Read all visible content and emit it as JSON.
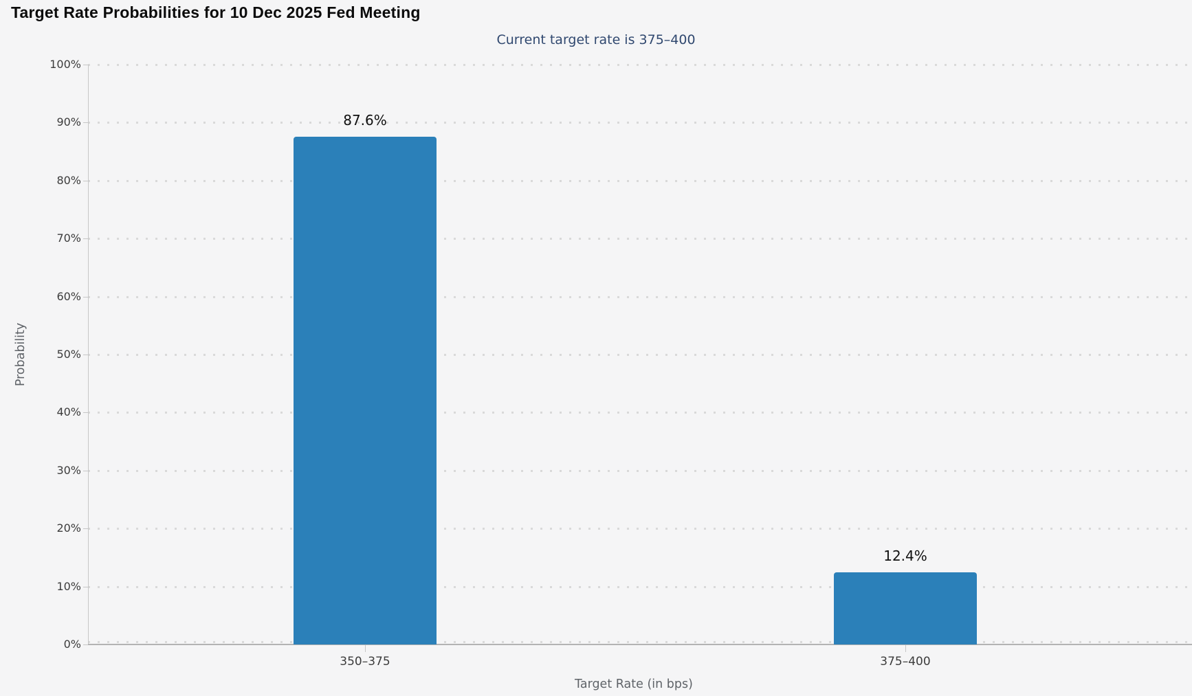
{
  "title": "Target Rate Probabilities for 10 Dec 2025 Fed Meeting",
  "subtitle": "Current target rate is 375–400",
  "chart_data": {
    "type": "bar",
    "title": "Target Rate Probabilities for 10 Dec 2025 Fed Meeting",
    "subtitle": "Current target rate is 375–400",
    "categories": [
      "350–375",
      "375–400"
    ],
    "values": [
      87.6,
      12.4
    ],
    "value_labels": [
      "87.6%",
      "12.4%"
    ],
    "xlabel": "Target Rate (in bps)",
    "ylabel": "Probability",
    "ylim": [
      0,
      100
    ],
    "ytick_step": 10,
    "ytick_labels": [
      "0%",
      "10%",
      "20%",
      "30%",
      "40%",
      "50%",
      "60%",
      "70%",
      "80%",
      "90%",
      "100%"
    ],
    "legend": "none",
    "grid": "horizontal-dotted",
    "bar_color": "#2b80b9"
  },
  "colors": {
    "background": "#f5f5f6",
    "title": "#0b0b0b",
    "subtitle": "#30486f",
    "bar": "#2b80b9",
    "axis_line": "#b3b3b3",
    "grid_dot": "#d9d9d9",
    "tick_label": "#3c3c3c",
    "axis_title": "#5f6368"
  }
}
